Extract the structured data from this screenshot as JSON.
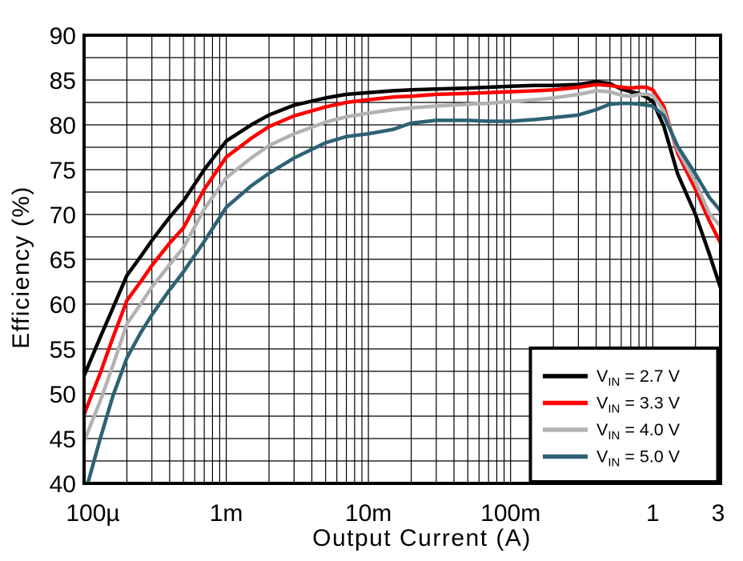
{
  "figure": {
    "background": "#ffffff",
    "text_color": "#000000"
  },
  "chart_data": {
    "type": "line",
    "title": "",
    "xlabel": "Output Current (A)",
    "ylabel": "Efficiency (%)",
    "x_scale": "log",
    "xlim": [
      0.0001,
      3
    ],
    "ylim": [
      40,
      90
    ],
    "y_major_step": 5,
    "y_minor_step": 2.5,
    "grid": true,
    "legend_position": "bottom-right",
    "xticks": [
      {
        "value": 0.0001,
        "label": "100µ",
        "dx": 11
      },
      {
        "value": 0.001,
        "label": "1m",
        "dx": 0
      },
      {
        "value": 0.01,
        "label": "10m",
        "dx": 0
      },
      {
        "value": 0.1,
        "label": "100m",
        "dx": 0
      },
      {
        "value": 1,
        "label": "1",
        "dx": 0
      },
      {
        "value": 3,
        "label": "3",
        "dx": -3
      }
    ],
    "yticks": [
      90,
      85,
      80,
      75,
      70,
      65,
      60,
      55,
      50,
      45,
      40
    ],
    "x": [
      0.0001,
      0.00013,
      0.00016,
      0.0002,
      0.00025,
      0.0003,
      0.0004,
      0.0005,
      0.0007,
      0.001,
      0.0015,
      0.002,
      0.003,
      0.005,
      0.007,
      0.01,
      0.015,
      0.02,
      0.03,
      0.05,
      0.07,
      0.1,
      0.15,
      0.2,
      0.3,
      0.4,
      0.5,
      0.6,
      0.7,
      0.8,
      0.9,
      1.0,
      1.2,
      1.5,
      2.0,
      2.5,
      3.0
    ],
    "series": [
      {
        "name": "VIN = 2.7 V",
        "color": "#000000",
        "y": [
          52.0,
          56.3,
          59.6,
          63.2,
          65.3,
          67.1,
          69.7,
          71.5,
          75.0,
          78.2,
          80.0,
          81.1,
          82.2,
          83.0,
          83.4,
          83.6,
          83.8,
          83.9,
          84.0,
          84.1,
          84.2,
          84.3,
          84.4,
          84.4,
          84.5,
          84.8,
          84.6,
          84.0,
          83.7,
          83.5,
          83.1,
          82.6,
          79.8,
          74.5,
          70.0,
          65.6,
          61.8
        ]
      },
      {
        "name": "VIN = 3.3 V",
        "color": "#ff0000",
        "y": [
          47.7,
          52.3,
          56.3,
          60.4,
          62.5,
          64.3,
          66.8,
          68.5,
          72.8,
          76.4,
          78.5,
          79.8,
          81.0,
          82.0,
          82.5,
          82.8,
          83.1,
          83.2,
          83.4,
          83.5,
          83.6,
          83.7,
          83.8,
          83.9,
          84.2,
          84.5,
          84.4,
          84.2,
          84.1,
          84.2,
          84.2,
          83.9,
          82.0,
          76.8,
          72.8,
          69.3,
          66.8
        ]
      },
      {
        "name": "VIN = 4.0 V",
        "color": "#b2b2b2",
        "y": [
          44.7,
          49.2,
          53.2,
          57.8,
          60.0,
          61.9,
          64.4,
          66.3,
          70.6,
          74.1,
          76.3,
          77.7,
          79.0,
          80.3,
          80.9,
          81.3,
          81.7,
          81.9,
          82.1,
          82.3,
          82.4,
          82.6,
          82.8,
          83.0,
          83.4,
          83.8,
          83.7,
          83.3,
          83.2,
          83.4,
          83.4,
          83.3,
          81.5,
          77.2,
          73.6,
          70.1,
          68.7
        ]
      },
      {
        "name": "VIN = 5.0 V",
        "color": "#2d6274",
        "y": [
          38.5,
          45.0,
          49.8,
          54.0,
          56.8,
          58.8,
          61.6,
          63.6,
          67.0,
          70.8,
          73.2,
          74.6,
          76.3,
          78.0,
          78.7,
          79.0,
          79.5,
          80.2,
          80.5,
          80.5,
          80.4,
          80.4,
          80.6,
          80.8,
          81.1,
          81.7,
          82.3,
          82.4,
          82.4,
          82.3,
          82.2,
          82.1,
          81.0,
          77.6,
          74.5,
          71.9,
          70.4
        ]
      }
    ],
    "legend": {
      "items": [
        {
          "prefix": "V",
          "sub": "IN",
          "rest": " = 2.7 V"
        },
        {
          "prefix": "V",
          "sub": "IN",
          "rest": " = 3.3 V"
        },
        {
          "prefix": "V",
          "sub": "IN",
          "rest": " = 4.0 V"
        },
        {
          "prefix": "V",
          "sub": "IN",
          "rest": " = 5.0 V"
        }
      ]
    }
  }
}
